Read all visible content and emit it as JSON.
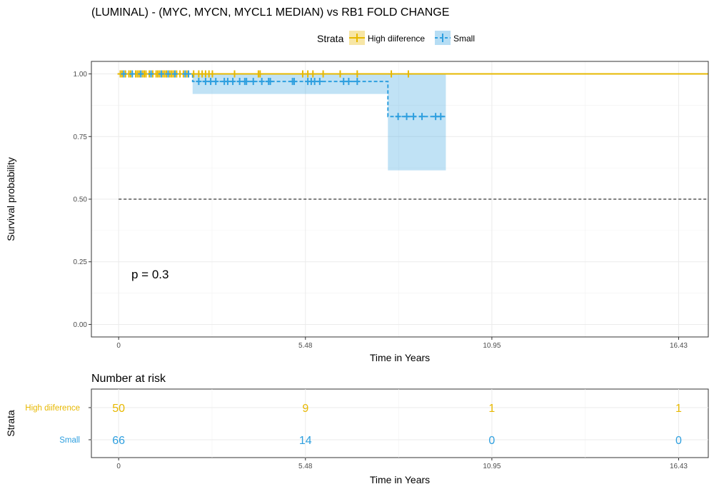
{
  "chart_data": {
    "type": "line",
    "subtype": "kaplan-meier",
    "title": "(LUMINAL) - (MYC, MYCN, MYCL1 MEDIAN) vs RB1 FOLD CHANGE",
    "legend": {
      "title": "Strata",
      "position": "top",
      "entries": [
        "High diiference",
        "Small"
      ]
    },
    "xlabel": "Time in Years",
    "ylabel": "Survival probability",
    "xlim": [
      -0.8,
      17.3
    ],
    "ylim": [
      -0.05,
      1.05
    ],
    "x_ticks": [
      0,
      5.48,
      10.95,
      16.43
    ],
    "x_tick_labels": [
      "0",
      "5.48",
      "10.95",
      "16.43"
    ],
    "y_ticks": [
      0,
      0.25,
      0.5,
      0.75,
      1
    ],
    "y_tick_labels": [
      "0.00",
      "0.25",
      "0.50",
      "0.75",
      "1.00"
    ],
    "grid": true,
    "median_line": 0.5,
    "annotation": "p = 0.3",
    "series": [
      {
        "name": "High diiference",
        "color": "#E7B800",
        "line_style": "solid",
        "steps": [
          [
            0,
            1.0
          ],
          [
            17.3,
            1.0
          ]
        ],
        "censor_times": [
          0.05,
          0.1,
          0.2,
          0.3,
          0.35,
          0.5,
          0.55,
          0.6,
          0.7,
          0.75,
          0.8,
          0.9,
          1.0,
          1.1,
          1.15,
          1.2,
          1.3,
          1.35,
          1.4,
          1.5,
          1.55,
          1.6,
          1.7,
          1.8,
          1.9,
          2.0,
          2.2,
          2.35,
          2.45,
          2.55,
          2.65,
          2.75,
          3.4,
          4.1,
          4.15,
          5.4,
          5.55,
          5.7,
          6.0,
          6.5,
          7.0,
          8.0,
          8.5
        ]
      },
      {
        "name": "Small",
        "color": "#2E9FDF",
        "line_style": "dashed",
        "steps": [
          [
            0,
            1.0
          ],
          [
            2.17,
            1.0
          ],
          [
            2.17,
            0.97
          ],
          [
            7.9,
            0.97
          ],
          [
            7.9,
            0.83
          ],
          [
            9.6,
            0.83
          ]
        ],
        "ci_bands": [
          {
            "x_start": 2.17,
            "x_end": 7.9,
            "low": 0.92,
            "high": 1.0
          },
          {
            "x_start": 7.9,
            "x_end": 9.6,
            "low": 0.615,
            "high": 1.0
          }
        ],
        "censor_times": [
          0.15,
          0.4,
          0.65,
          0.95,
          1.25,
          1.45,
          1.65,
          1.95,
          2.05,
          2.35,
          2.55,
          2.7,
          2.85,
          3.1,
          3.2,
          3.35,
          3.55,
          3.7,
          3.75,
          3.95,
          4.2,
          4.4,
          4.45,
          5.1,
          5.15,
          5.55,
          5.65,
          5.75,
          5.9,
          6.6,
          6.75,
          7.0,
          8.2,
          8.45,
          8.65,
          8.9,
          9.3,
          9.45
        ]
      }
    ]
  },
  "risk_table": {
    "title": "Number at risk",
    "y_axis_label": "Strata",
    "xlabel": "Time in Years",
    "x_ticks": [
      0,
      5.48,
      10.95,
      16.43
    ],
    "x_tick_labels": [
      "0",
      "5.48",
      "10.95",
      "16.43"
    ],
    "rows": [
      {
        "strata": "High diiference",
        "color": "#E7B800",
        "values": [
          "50",
          "9",
          "1",
          "1"
        ]
      },
      {
        "strata": "Small",
        "color": "#2E9FDF",
        "values": [
          "66",
          "14",
          "0",
          "0"
        ]
      }
    ]
  }
}
